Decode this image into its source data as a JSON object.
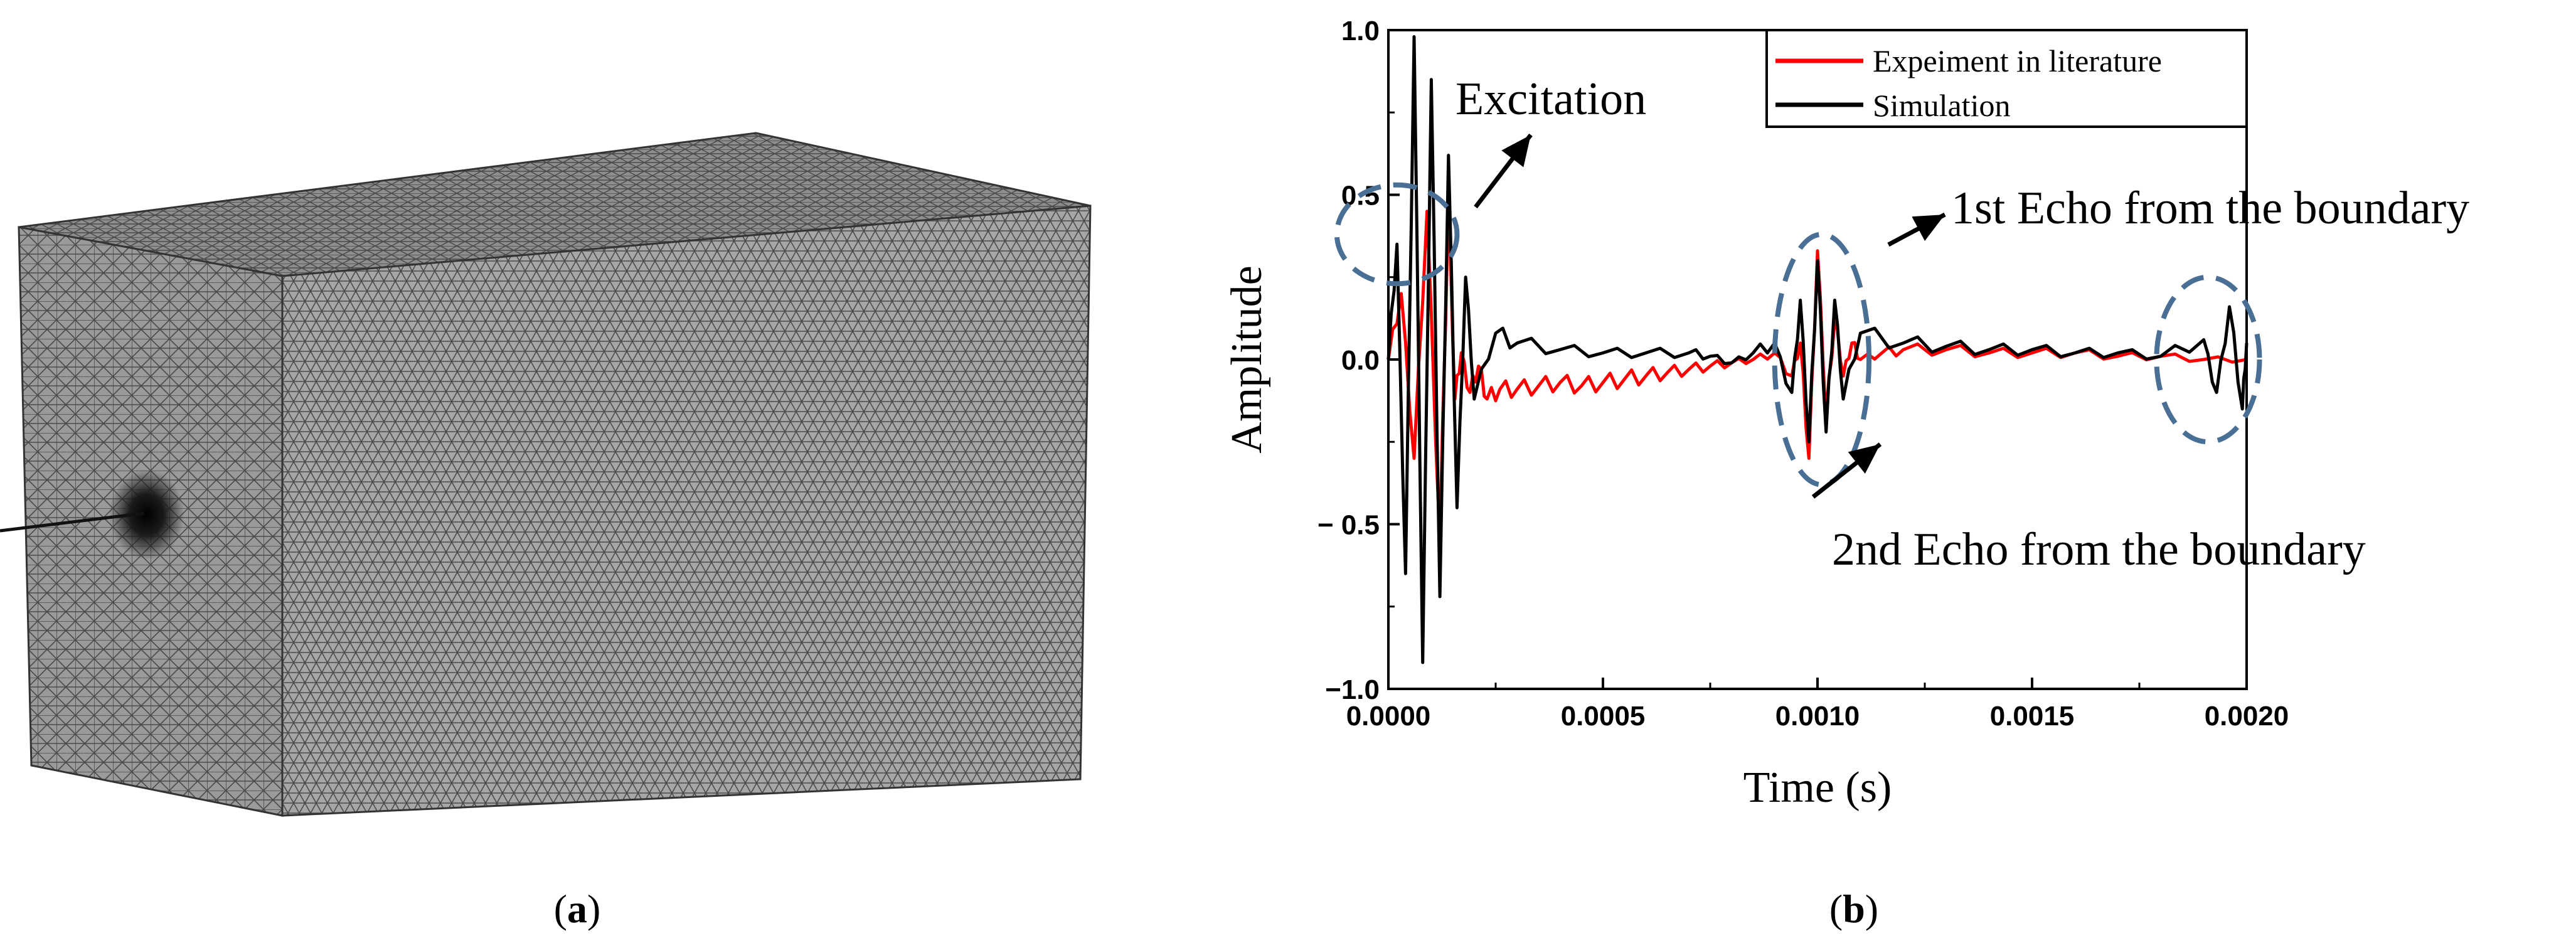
{
  "panels": {
    "a": {
      "label_open": "(",
      "label_letter": "a",
      "label_close": ")"
    },
    "b": {
      "label_open": "(",
      "label_letter": "b",
      "label_close": ")"
    }
  },
  "colors": {
    "experiment": "#ff0000",
    "simulation": "#000000",
    "annotation_circle": "#4a6f94",
    "mesh_side": "#9a9a9a",
    "mesh_front": "#a6a6a6",
    "mesh_top": "#8e8e8e",
    "mesh_line": "#4a4a4a"
  },
  "chart_data": {
    "type": "line",
    "xlabel": "Time (s)",
    "ylabel": "Amplitude",
    "xlim": [
      0,
      0.002
    ],
    "ylim": [
      -1.0,
      1.0
    ],
    "x_ticks": [
      0,
      0.0005,
      0.001,
      0.0015,
      0.002
    ],
    "x_tick_labels": [
      "0.0000",
      "0.0005",
      "0.0010",
      "0.0015",
      "0.0020"
    ],
    "y_ticks": [
      -1.0,
      -0.5,
      0.0,
      0.5,
      1.0
    ],
    "y_tick_labels": [
      "−1.0",
      "− 0.5",
      "0.0",
      "0.5",
      "1.0"
    ],
    "legend": {
      "position": "top-right",
      "entries": [
        "Expeiment in literature",
        "Simulation"
      ]
    },
    "series": [
      {
        "name": "Expeiment in literature",
        "color": "#ff0000",
        "t": [
          0.0,
          3e-05,
          6e-05,
          9e-05,
          0.00012,
          0.00014,
          0.000155,
          0.00017,
          0.00019,
          0.00021,
          0.00023,
          0.00026,
          0.0003,
          0.00035,
          0.0004,
          0.00045,
          0.0005,
          0.00055,
          0.0006,
          0.00065,
          0.0007,
          0.00075,
          0.0008,
          0.00085,
          0.0009,
          0.00094,
          0.00096,
          0.00098,
          0.001,
          0.00102,
          0.00104,
          0.00106,
          0.00108,
          0.0011,
          0.00115,
          0.0012,
          0.0013,
          0.0014,
          0.0015,
          0.0016,
          0.0017,
          0.0018,
          0.0019,
          0.002
        ],
        "y": [
          0.0,
          0.2,
          -0.3,
          0.45,
          -0.55,
          0.48,
          -0.12,
          0.02,
          -0.1,
          -0.02,
          -0.12,
          -0.09,
          -0.09,
          -0.08,
          -0.07,
          -0.08,
          -0.07,
          -0.06,
          -0.05,
          -0.04,
          -0.03,
          -0.02,
          -0.01,
          0.0,
          0.02,
          -0.05,
          0.05,
          -0.3,
          0.33,
          -0.18,
          0.12,
          -0.05,
          0.05,
          0.0,
          0.02,
          0.03,
          0.03,
          0.02,
          0.02,
          0.02,
          0.01,
          0.01,
          0.0,
          0.0
        ]
      },
      {
        "name": "Simulation",
        "color": "#000000",
        "t": [
          0.0,
          2e-05,
          4e-05,
          6e-05,
          8e-05,
          0.0001,
          0.00012,
          0.00014,
          0.00016,
          0.00018,
          0.0002,
          0.00025,
          0.0003,
          0.0004,
          0.0005,
          0.0006,
          0.0007,
          0.00075,
          0.0008,
          0.00085,
          0.0009,
          0.00094,
          0.00096,
          0.00098,
          0.001,
          0.00102,
          0.00104,
          0.00106,
          0.0011,
          0.0012,
          0.0013,
          0.0014,
          0.0015,
          0.0016,
          0.0017,
          0.0018,
          0.0019,
          0.00193,
          0.00196,
          0.00199,
          0.002
        ],
        "y": [
          0.0,
          0.35,
          -0.65,
          0.98,
          -0.92,
          0.85,
          -0.72,
          0.62,
          -0.45,
          0.25,
          -0.12,
          0.08,
          0.05,
          0.03,
          0.02,
          0.02,
          0.02,
          0.01,
          -0.01,
          0.02,
          0.05,
          -0.1,
          0.18,
          -0.25,
          0.3,
          -0.22,
          0.18,
          -0.12,
          0.08,
          0.05,
          0.04,
          0.03,
          0.03,
          0.02,
          0.02,
          0.01,
          0.06,
          -0.1,
          0.16,
          -0.15,
          0.05
        ]
      }
    ],
    "annotations": [
      {
        "name": "excitation",
        "text": "Excitation",
        "circle_center": [
          2e-05,
          0.38
        ],
        "circle_radius": [
          0.00014,
          0.15
        ],
        "label_anchor": [
          0.00018,
          0.75
        ]
      },
      {
        "name": "echo-1",
        "text": "1st Echo from the boundary",
        "circle_center": [
          0.00101,
          0.0
        ],
        "circle_radius": [
          0.00011,
          0.38
        ],
        "label_anchor": [
          0.00136,
          0.47
        ]
      },
      {
        "name": "echo-2",
        "text": "2nd Echo from the boundary",
        "circle_center": [
          0.00191,
          0.0
        ],
        "circle_radius": [
          0.00012,
          0.25
        ],
        "label_anchor": [
          0.0015,
          -0.68
        ]
      }
    ]
  }
}
